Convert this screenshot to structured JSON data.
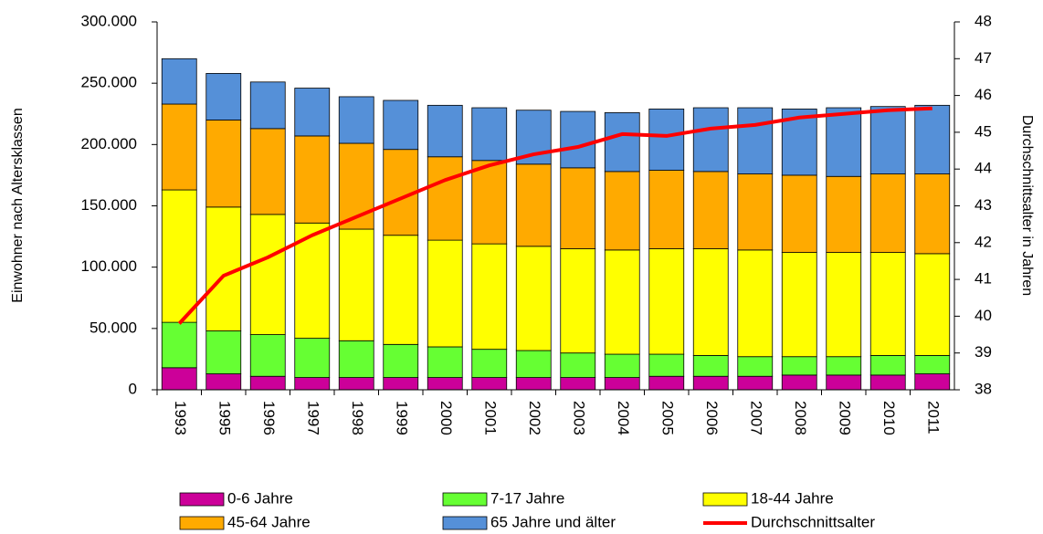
{
  "chart_data": {
    "type": "bar",
    "stacked": true,
    "y_label": "Einwohner nach Altersklassen",
    "y2_label": "Durchschnittsalter in Jahren",
    "categories": [
      "1993",
      "1995",
      "1996",
      "1997",
      "1998",
      "1999",
      "2000",
      "2001",
      "2002",
      "2003",
      "2004",
      "2005",
      "2006",
      "2007",
      "2008",
      "2009",
      "2010",
      "2011"
    ],
    "ylim": [
      0,
      300000
    ],
    "yticks": [
      0,
      {
        "value": 50000,
        "label": "50.000"
      },
      {
        "value": 100000,
        "label": "100.000"
      },
      {
        "value": 150000,
        "label": "150.000"
      },
      {
        "value": 200000,
        "label": "200.000"
      },
      {
        "value": 250000,
        "label": "250.000"
      },
      {
        "value": 300000,
        "label": "300.000"
      }
    ],
    "y2lim": [
      38,
      48
    ],
    "y2ticks": [
      38,
      39,
      40,
      41,
      42,
      43,
      44,
      45,
      46,
      47,
      48
    ],
    "series": [
      {
        "name": "0-6 Jahre",
        "type": "bar",
        "color": "#cc0099",
        "values": [
          18000,
          13000,
          11000,
          10000,
          10000,
          10000,
          10000,
          10000,
          10000,
          10000,
          10000,
          11000,
          11000,
          11000,
          12000,
          12000,
          12000,
          13000
        ]
      },
      {
        "name": "7-17 Jahre",
        "type": "bar",
        "color": "#66ff33",
        "values": [
          37000,
          35000,
          34000,
          32000,
          30000,
          27000,
          25000,
          23000,
          22000,
          20000,
          19000,
          18000,
          17000,
          16000,
          15000,
          15000,
          16000,
          15000
        ]
      },
      {
        "name": "18-44 Jahre",
        "type": "bar",
        "color": "#ffff00",
        "values": [
          108000,
          101000,
          98000,
          94000,
          91000,
          89000,
          87000,
          86000,
          85000,
          85000,
          85000,
          86000,
          87000,
          87000,
          85000,
          85000,
          84000,
          83000
        ]
      },
      {
        "name": "45-64 Jahre",
        "type": "bar",
        "color": "#ffaa00",
        "values": [
          70000,
          71000,
          70000,
          71000,
          70000,
          70000,
          68000,
          68000,
          67000,
          66000,
          64000,
          64000,
          63000,
          62000,
          63000,
          62000,
          64000,
          65000
        ]
      },
      {
        "name": "65 Jahre und älter",
        "type": "bar",
        "color": "#5590d8",
        "values": [
          37000,
          38000,
          38000,
          39000,
          38000,
          40000,
          42000,
          43000,
          44000,
          46000,
          48000,
          50000,
          52000,
          54000,
          54000,
          56000,
          55000,
          56000
        ]
      },
      {
        "name": "Durchschnittsalter",
        "type": "line",
        "axis": "y2",
        "color": "#ff0000",
        "values": [
          39.8,
          41.1,
          41.6,
          42.2,
          42.7,
          43.2,
          43.7,
          44.1,
          44.4,
          44.6,
          44.95,
          44.9,
          45.1,
          45.2,
          45.4,
          45.5,
          45.6,
          45.65
        ]
      }
    ]
  }
}
